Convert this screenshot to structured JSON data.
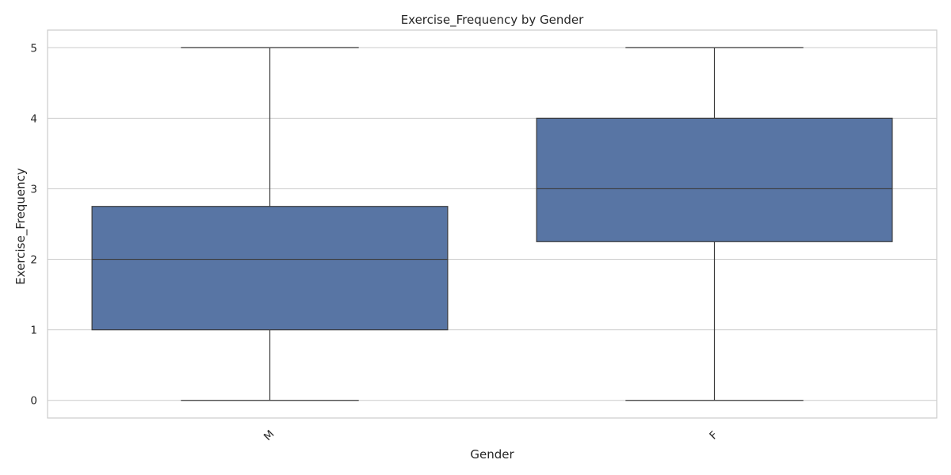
{
  "chart_data": {
    "type": "box",
    "title": "Exercise_Frequency by Gender",
    "xlabel": "Gender",
    "ylabel": "Exercise_Frequency",
    "categories": [
      "M",
      "F"
    ],
    "boxes": [
      {
        "category": "M",
        "min": 0,
        "q1": 1,
        "median": 2,
        "q3": 2.75,
        "max": 5
      },
      {
        "category": "F",
        "min": 0,
        "q1": 2.25,
        "median": 3,
        "q3": 4,
        "max": 5
      }
    ],
    "yticks": [
      0,
      1,
      2,
      3,
      4,
      5
    ],
    "ylim": [
      -0.25,
      5.25
    ],
    "grid": "horizontal",
    "colors": {
      "box": "#5875a4",
      "line": "#3b3b3b",
      "grid": "#cccccc"
    }
  }
}
